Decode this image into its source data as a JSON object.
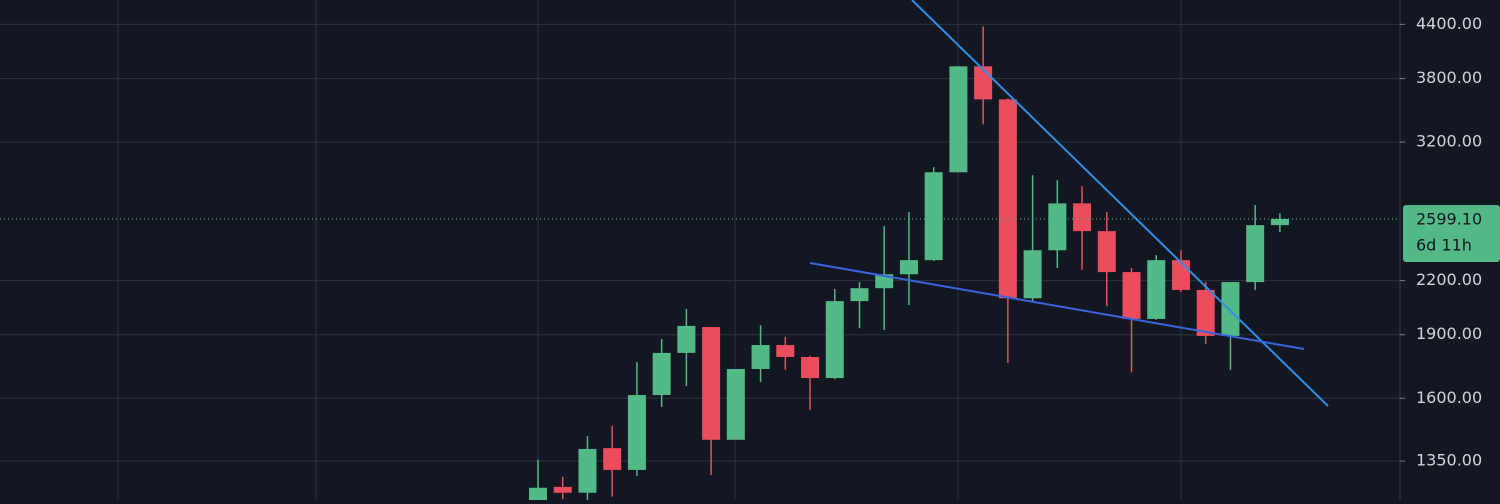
{
  "chart_data": {
    "type": "candlestick",
    "log_scale": true,
    "grid": true,
    "up_color": "#53b987",
    "down_color": "#eb4d5c",
    "open": [
      1213,
      1259,
      1239,
      1398,
      1318,
      1614,
      1809,
      1940,
      1430,
      1732,
      1848,
      1789,
      1690,
      2081,
      2155,
      2238,
      2325,
      2949,
      3928,
      3592,
      2097,
      2388,
      2711,
      2515,
      2251,
      1983,
      2325,
      2145,
      1894,
      2191,
      2556
    ],
    "high": [
      1355,
      1294,
      1444,
      1485,
      1764,
      1878,
      2037,
      1940,
      1732,
      1949,
      1890,
      1795,
      2150,
      2191,
      2549,
      2648,
      2990,
      3928,
      4376,
      3600,
      2926,
      2886,
      2840,
      2648,
      2276,
      2357,
      2388,
      2191,
      2191,
      2699,
      2640
    ],
    "low": [
      1200,
      1218,
      1215,
      1226,
      1297,
      1563,
      1654,
      1300,
      1430,
      1672,
      1728,
      1550,
      1685,
      1934,
      1925,
      2059,
      2320,
      2949,
      3358,
      1760,
      2081,
      2276,
      2265,
      2053,
      1717,
      1978,
      2133,
      1853,
      1728,
      2145,
      2508
    ],
    "close": [
      1256,
      1239,
      1395,
      1318,
      1614,
      1809,
      1946,
      1430,
      1732,
      1848,
      1789,
      1690,
      2081,
      2155,
      2238,
      2325,
      2949,
      3928,
      3592,
      2097,
      2388,
      2711,
      2515,
      2251,
      1983,
      2325,
      2145,
      1894,
      2191,
      2556,
      2599.1
    ],
    "ylim": [
      1215,
      4700
    ],
    "yticks": [
      {
        "value": 1350,
        "label": "1350.00"
      },
      {
        "value": 1600,
        "label": "1600.00"
      },
      {
        "value": 1900,
        "label": "1900.00"
      },
      {
        "value": 2200,
        "label": "2200.00"
      },
      {
        "value": 3200,
        "label": "3200.00"
      },
      {
        "value": 3800,
        "label": "3800.00"
      },
      {
        "value": 4400,
        "label": "4400.00"
      }
    ],
    "last_price": {
      "value": 2599.1,
      "label": "2599.10"
    },
    "countdown": "6d 11h"
  }
}
